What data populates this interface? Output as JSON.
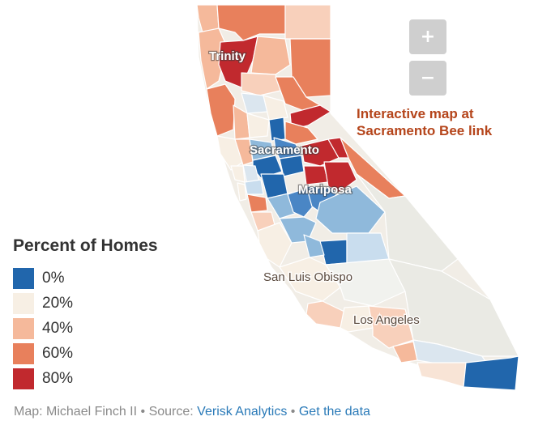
{
  "zoom": {
    "in_label": "+",
    "out_label": "−"
  },
  "note": {
    "line1": "Interactive map at",
    "line2": "Sacramento Bee link"
  },
  "map_labels": {
    "trinity": "Trinity",
    "sacramento": "Sacramento",
    "mariposa": "Mariposa",
    "san_luis_obispo": "San Luis Obispo",
    "los_angeles": "Los Angeles"
  },
  "legend": {
    "title": "Percent of Homes",
    "items": [
      {
        "label": "0%",
        "color": "#2166ac"
      },
      {
        "label": "20%",
        "color": "#f7efe4"
      },
      {
        "label": "40%",
        "color": "#f5b99b"
      },
      {
        "label": "60%",
        "color": "#e8805c"
      },
      {
        "label": "80%",
        "color": "#c1292e"
      }
    ]
  },
  "footer": {
    "credit": "Map: Michael Finch II",
    "source_prefix": "Source:",
    "source_link": "Verisk Analytics",
    "data_link": "Get the data",
    "separator": "•"
  },
  "colors": {
    "blue_dark": "#2166ac",
    "blue_mid": "#4a86c5",
    "blue_light": "#8fb9db",
    "blue_pale": "#c9ddee",
    "neutral": "#f7efe4",
    "neutral_gray": "#eaeae4",
    "peach": "#f5b99b",
    "peach_light": "#f8d0bb",
    "orange": "#e8805c",
    "red": "#c1292e"
  }
}
